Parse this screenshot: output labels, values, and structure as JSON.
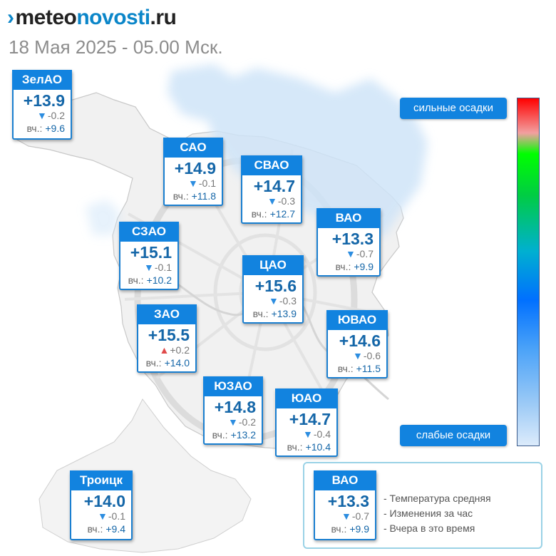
{
  "header": {
    "logo_mark": "›",
    "logo_part1": "meteo",
    "logo_part2": "novosti",
    "logo_part3": ".ru",
    "datetime": "18 Мая 2025 - 05.00 Мск."
  },
  "yesterday_label": "вч.:",
  "districts": [
    {
      "id": "zelao",
      "name": "ЗелАО",
      "temp": "+13.9",
      "change": "-0.2",
      "trend": "down",
      "yesterday": "+9.6"
    },
    {
      "id": "sao",
      "name": "САО",
      "temp": "+14.9",
      "change": "-0.1",
      "trend": "down",
      "yesterday": "+11.8"
    },
    {
      "id": "svao",
      "name": "СВАО",
      "temp": "+14.7",
      "change": "-0.3",
      "trend": "down",
      "yesterday": "+12.7"
    },
    {
      "id": "vao",
      "name": "ВАО",
      "temp": "+13.3",
      "change": "-0.7",
      "trend": "down",
      "yesterday": "+9.9"
    },
    {
      "id": "szao",
      "name": "СЗАО",
      "temp": "+15.1",
      "change": "-0.1",
      "trend": "down",
      "yesterday": "+10.2"
    },
    {
      "id": "cao",
      "name": "ЦАО",
      "temp": "+15.6",
      "change": "-0.3",
      "trend": "down",
      "yesterday": "+13.9"
    },
    {
      "id": "zao",
      "name": "ЗАО",
      "temp": "+15.5",
      "change": "+0.2",
      "trend": "up",
      "yesterday": "+14.0"
    },
    {
      "id": "yuvao",
      "name": "ЮВАО",
      "temp": "+14.6",
      "change": "-0.6",
      "trend": "down",
      "yesterday": "+11.5"
    },
    {
      "id": "yuzao",
      "name": "ЮЗАО",
      "temp": "+14.8",
      "change": "-0.2",
      "trend": "down",
      "yesterday": "+13.2"
    },
    {
      "id": "yuao",
      "name": "ЮАО",
      "temp": "+14.7",
      "change": "-0.4",
      "trend": "down",
      "yesterday": "+10.4"
    },
    {
      "id": "troitsk",
      "name": "Троицк",
      "temp": "+14.0",
      "change": "-0.1",
      "trend": "down",
      "yesterday": "+9.4"
    }
  ],
  "precip_scale": {
    "high_label": "сильные осадки",
    "low_label": "слабые осадки"
  },
  "legend": {
    "sample": {
      "name": "ВАО",
      "temp": "+13.3",
      "change": "-0.7",
      "trend": "down",
      "yesterday": "+9.9"
    },
    "line1": "- Температура средняя",
    "line2": "- Изменения за час",
    "line3": "- Вчера в это время"
  },
  "colors": {
    "brand": "#0b86c9",
    "card_header": "#1283df",
    "temp_text": "#1466a8",
    "arrow_down": "#2c8de0",
    "arrow_up": "#e04a4a",
    "precip_light": "#cfe4f8"
  }
}
